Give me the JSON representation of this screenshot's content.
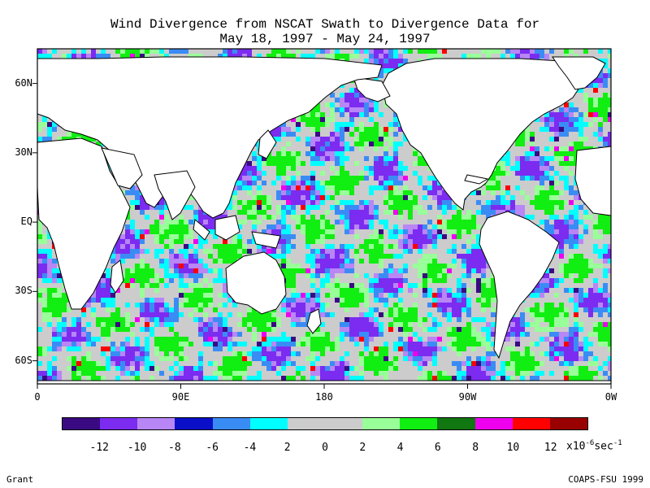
{
  "title_line1": "Wind Divergence from NSCAT Swath to Divergence Data for",
  "title_line2": "May 18, 1997 - May 24, 1997",
  "credit_left": "Grant",
  "credit_right": "COAPS-FSU 1999",
  "chart_data": {
    "type": "heatmap",
    "title": "Wind Divergence from NSCAT Swath to Divergence Data for May 18, 1997 - May 24, 1997",
    "x_axis": {
      "ticks": [
        "0",
        "90E",
        "180",
        "90W",
        "0W"
      ],
      "range": [
        0,
        360
      ]
    },
    "y_axis": {
      "ticks": [
        "60N",
        "30N",
        "EQ",
        "30S",
        "60S"
      ],
      "range": [
        -70,
        75
      ]
    },
    "colorbar": {
      "tick_labels": [
        "-12",
        "-10",
        "-8",
        "-6",
        "-4",
        "2",
        "0",
        "2",
        "4",
        "6",
        "8",
        "10",
        "12"
      ],
      "units": {
        "prefix": "x10",
        "exp1": "-6",
        "mid": "sec",
        "exp2": "-1"
      },
      "colors": [
        "#3a0a82",
        "#7b2cf0",
        "#b886f5",
        "#0a10c8",
        "#3a8cf5",
        "#00ffff",
        "#cccccc",
        "#cccccc",
        "#99ff99",
        "#11ee11",
        "#117711",
        "#ee00ee",
        "#ff0000",
        "#990000"
      ]
    }
  }
}
